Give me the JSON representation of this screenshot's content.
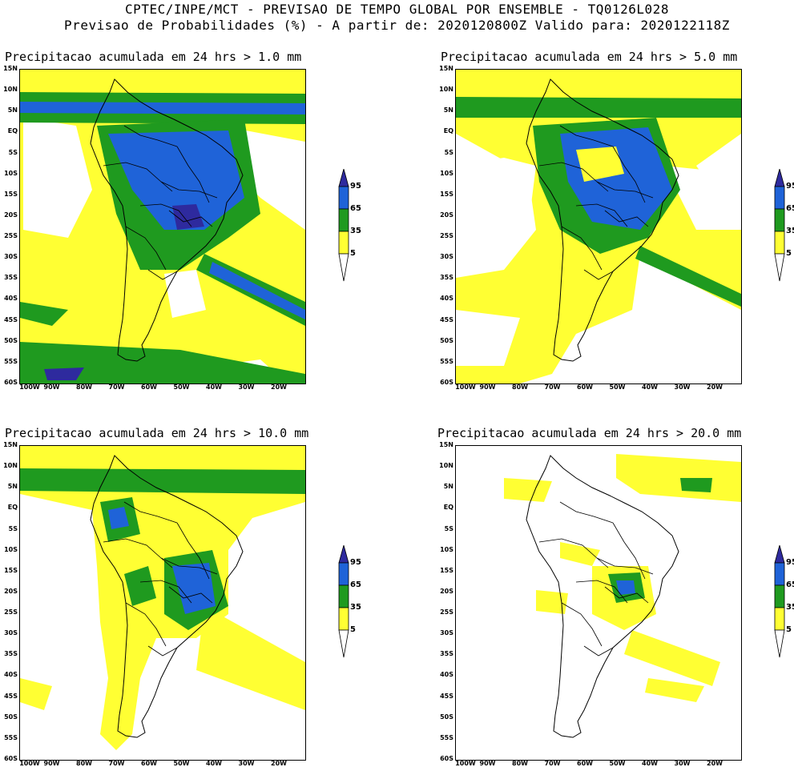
{
  "header": {
    "line1": "CPTEC/INPE/MCT - PREVISAO DE TEMPO GLOBAL POR ENSEMBLE - TQ0126L028",
    "line2": "Previsao de Probabilidades (%) -  A partir de: 2020120800Z  Valido para: 2020122118Z"
  },
  "colors": {
    "yellow": "#ffff33",
    "green": "#1f9a1f",
    "blue": "#1f63d8",
    "navy": "#2e2a9e",
    "white": "#ffffff"
  },
  "legend": {
    "levels": [
      "95",
      "65",
      "35",
      "5"
    ],
    "bands": [
      "navy",
      "blue",
      "green",
      "yellow",
      "white"
    ]
  },
  "axes": {
    "lat_labels": [
      "15N",
      "10N",
      "5N",
      "EQ",
      "5S",
      "10S",
      "15S",
      "20S",
      "25S",
      "30S",
      "35S",
      "40S",
      "45S",
      "50S",
      "55S",
      "60S"
    ],
    "lon_labels": [
      "100W",
      "90W",
      "80W",
      "70W",
      "60W",
      "50W",
      "40W",
      "30W",
      "20W"
    ]
  },
  "panels": [
    {
      "title": "Precipitacao acumulada em 24 hrs > 1.0 mm"
    },
    {
      "title": "Precipitacao acumulada em 24 hrs > 5.0 mm"
    },
    {
      "title": "Precipitacao acumulada em 24 hrs > 10.0 mm"
    },
    {
      "title": "Precipitacao acumulada em 24 hrs > 20.0 mm"
    }
  ]
}
